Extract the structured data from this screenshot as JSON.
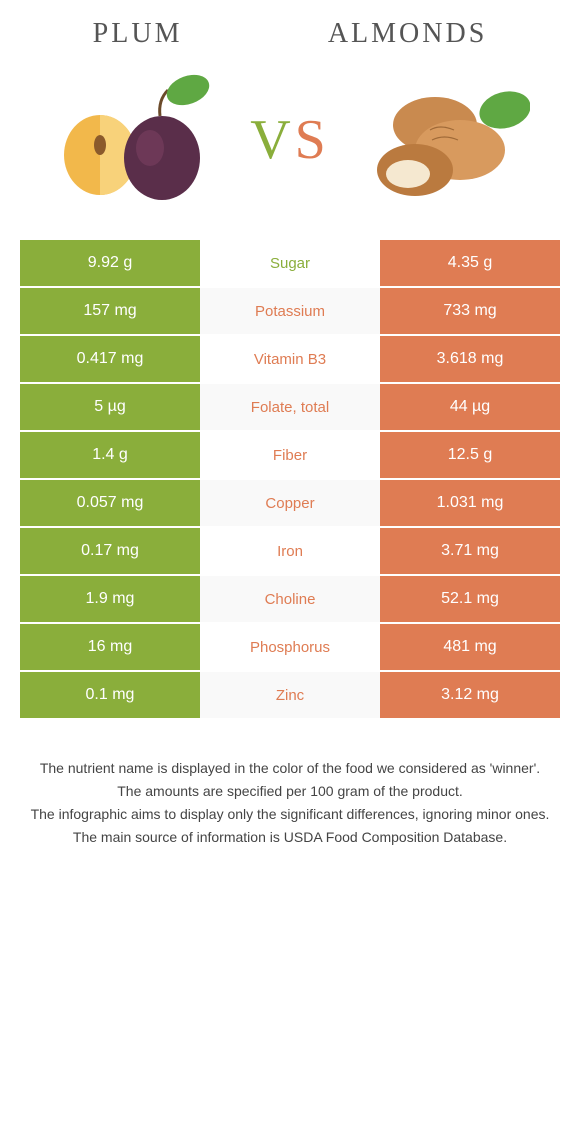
{
  "header": {
    "left_title": "Plum",
    "right_title": "Almonds",
    "vs_label": "VS",
    "vs_left_color": "#8aae3b",
    "vs_right_color": "#df7c53"
  },
  "colors": {
    "plum": "#8aae3b",
    "almonds": "#df7c53",
    "row_alt_bg": "#f9f9f9",
    "row_bg": "#ffffff",
    "text": "#333333"
  },
  "table": {
    "rows": [
      {
        "nutrient": "Sugar",
        "left": "9.92 g",
        "right": "4.35 g",
        "winner": "plum"
      },
      {
        "nutrient": "Potassium",
        "left": "157 mg",
        "right": "733 mg",
        "winner": "almonds"
      },
      {
        "nutrient": "Vitamin B3",
        "left": "0.417 mg",
        "right": "3.618 mg",
        "winner": "almonds"
      },
      {
        "nutrient": "Folate, total",
        "left": "5 µg",
        "right": "44 µg",
        "winner": "almonds"
      },
      {
        "nutrient": "Fiber",
        "left": "1.4 g",
        "right": "12.5 g",
        "winner": "almonds"
      },
      {
        "nutrient": "Copper",
        "left": "0.057 mg",
        "right": "1.031 mg",
        "winner": "almonds"
      },
      {
        "nutrient": "Iron",
        "left": "0.17 mg",
        "right": "3.71 mg",
        "winner": "almonds"
      },
      {
        "nutrient": "Choline",
        "left": "1.9 mg",
        "right": "52.1 mg",
        "winner": "almonds"
      },
      {
        "nutrient": "Phosphorus",
        "left": "16 mg",
        "right": "481 mg",
        "winner": "almonds"
      },
      {
        "nutrient": "Zinc",
        "left": "0.1 mg",
        "right": "3.12 mg",
        "winner": "almonds"
      }
    ]
  },
  "footer": {
    "line1": "The nutrient name is displayed in the color of the food we considered as 'winner'.",
    "line2": "The amounts are specified per 100 gram of the product.",
    "line3": "The infographic aims to display only the significant differences, ignoring minor ones.",
    "line4": "The main source of information is USDA Food Composition Database."
  }
}
